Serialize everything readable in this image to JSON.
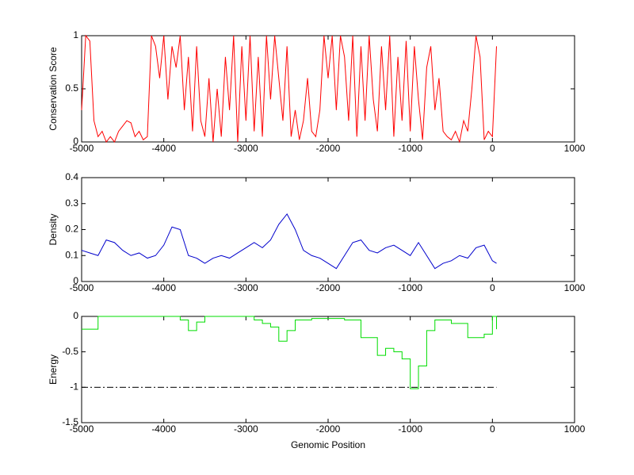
{
  "chart_data": [
    {
      "type": "line",
      "ylabel": "Conservation Score",
      "x": [
        -5000,
        -4950,
        -4900,
        -4850,
        -4800,
        -4750,
        -4700,
        -4650,
        -4600,
        -4550,
        -4500,
        -4450,
        -4400,
        -4350,
        -4300,
        -4250,
        -4200,
        -4150,
        -4100,
        -4050,
        -4000,
        -3950,
        -3900,
        -3850,
        -3800,
        -3750,
        -3700,
        -3650,
        -3600,
        -3550,
        -3500,
        -3450,
        -3400,
        -3350,
        -3300,
        -3250,
        -3200,
        -3150,
        -3100,
        -3050,
        -3000,
        -2950,
        -2900,
        -2850,
        -2800,
        -2750,
        -2700,
        -2650,
        -2600,
        -2550,
        -2500,
        -2450,
        -2400,
        -2350,
        -2300,
        -2250,
        -2200,
        -2150,
        -2100,
        -2050,
        -2000,
        -1950,
        -1900,
        -1850,
        -1800,
        -1750,
        -1700,
        -1650,
        -1600,
        -1550,
        -1500,
        -1450,
        -1400,
        -1350,
        -1300,
        -1250,
        -1200,
        -1150,
        -1100,
        -1050,
        -1000,
        -950,
        -900,
        -850,
        -800,
        -750,
        -700,
        -650,
        -600,
        -550,
        -500,
        -450,
        -400,
        -350,
        -300,
        -250,
        -200,
        -150,
        -100,
        -50,
        0,
        50
      ],
      "series": [
        {
          "color": "#ff0000",
          "values": [
            0.3,
            1,
            0.95,
            0.2,
            0.05,
            0.1,
            0,
            0.05,
            0,
            0.1,
            0.15,
            0.2,
            0.18,
            0.05,
            0.1,
            0.02,
            0.05,
            1,
            0.9,
            0.6,
            1,
            0.4,
            0.9,
            0.7,
            1,
            0.3,
            0.8,
            0.1,
            0.9,
            0.2,
            0.05,
            0.6,
            0,
            0.5,
            0.05,
            0.8,
            0.3,
            1,
            0,
            0.9,
            0.2,
            1,
            0.1,
            0.8,
            0.05,
            1,
            0.4,
            1,
            0.6,
            0.2,
            0.9,
            0.05,
            0.3,
            0.02,
            0.2,
            0.6,
            0.1,
            0.05,
            0.3,
            1,
            0.6,
            1,
            0.3,
            1,
            0.8,
            0.2,
            1,
            0.05,
            0.9,
            0.2,
            1,
            0.4,
            0.1,
            0.9,
            0.3,
            1,
            0.05,
            0.8,
            0.2,
            0.95,
            0.1,
            0.9,
            0.4,
            0.02,
            0.7,
            0.9,
            0.3,
            0.6,
            0.1,
            0.05,
            0.02,
            0.1,
            0,
            0.2,
            0.1,
            0.5,
            1,
            0.8,
            0.02,
            0.1,
            0.05,
            0.9
          ]
        }
      ],
      "xlim": [
        -5000,
        1000
      ],
      "xticks": [
        -5000,
        -4000,
        -3000,
        -2000,
        -1000,
        0,
        1000
      ],
      "ylim": [
        0,
        1
      ],
      "yticks": [
        0,
        0.5,
        1
      ]
    },
    {
      "type": "line",
      "ylabel": "Density",
      "x": [
        -5000,
        -4900,
        -4800,
        -4700,
        -4600,
        -4500,
        -4400,
        -4300,
        -4200,
        -4100,
        -4000,
        -3900,
        -3800,
        -3700,
        -3600,
        -3500,
        -3400,
        -3300,
        -3200,
        -3100,
        -3000,
        -2900,
        -2800,
        -2700,
        -2600,
        -2500,
        -2400,
        -2300,
        -2200,
        -2100,
        -2000,
        -1900,
        -1800,
        -1700,
        -1600,
        -1500,
        -1400,
        -1300,
        -1200,
        -1100,
        -1000,
        -900,
        -800,
        -700,
        -600,
        -500,
        -400,
        -300,
        -200,
        -100,
        0,
        50
      ],
      "series": [
        {
          "color": "#0000cc",
          "values": [
            0.12,
            0.11,
            0.1,
            0.16,
            0.15,
            0.12,
            0.1,
            0.11,
            0.09,
            0.1,
            0.14,
            0.21,
            0.2,
            0.1,
            0.09,
            0.07,
            0.09,
            0.1,
            0.09,
            0.11,
            0.13,
            0.15,
            0.13,
            0.16,
            0.22,
            0.26,
            0.2,
            0.12,
            0.1,
            0.09,
            0.07,
            0.05,
            0.1,
            0.15,
            0.16,
            0.12,
            0.11,
            0.13,
            0.14,
            0.12,
            0.1,
            0.15,
            0.1,
            0.05,
            0.07,
            0.08,
            0.1,
            0.09,
            0.13,
            0.14,
            0.08,
            0.07
          ]
        }
      ],
      "xlim": [
        -5000,
        1000
      ],
      "xticks": [
        -5000,
        -4000,
        -3000,
        -2000,
        -1000,
        0,
        1000
      ],
      "ylim": [
        0,
        0.4
      ],
      "yticks": [
        0,
        0.1,
        0.2,
        0.3,
        0.4
      ]
    },
    {
      "type": "line",
      "ylabel": "Energy",
      "xlabel": "Genomic Position",
      "drawstyle": "steps",
      "x": [
        -5000,
        -4900,
        -4800,
        -3800,
        -3700,
        -3600,
        -3500,
        -3300,
        -2900,
        -2800,
        -2700,
        -2600,
        -2500,
        -2400,
        -2200,
        -1800,
        -1600,
        -1400,
        -1300,
        -1200,
        -1100,
        -1000,
        -900,
        -800,
        -700,
        -500,
        -300,
        -100,
        0,
        50
      ],
      "series": [
        {
          "color": "#00dd00",
          "values": [
            -0.18,
            -0.18,
            0,
            -0.05,
            -0.2,
            -0.08,
            0,
            0,
            -0.05,
            -0.1,
            -0.15,
            -0.35,
            -0.2,
            -0.05,
            -0.03,
            -0.05,
            -0.3,
            -0.55,
            -0.45,
            -0.5,
            -0.6,
            -1.02,
            -0.7,
            -0.2,
            -0.05,
            -0.1,
            -0.3,
            -0.25,
            0,
            -0.18
          ]
        },
        {
          "color": "#000000",
          "linestyle": "dashdot",
          "x": [
            -5000,
            50
          ],
          "values": [
            -1,
            -1
          ]
        }
      ],
      "xlim": [
        -5000,
        1000
      ],
      "xticks": [
        -5000,
        -4000,
        -3000,
        -2000,
        -1000,
        0,
        1000
      ],
      "ylim": [
        -1.5,
        0
      ],
      "yticks": [
        -1.5,
        -1,
        -0.5,
        0
      ]
    }
  ]
}
